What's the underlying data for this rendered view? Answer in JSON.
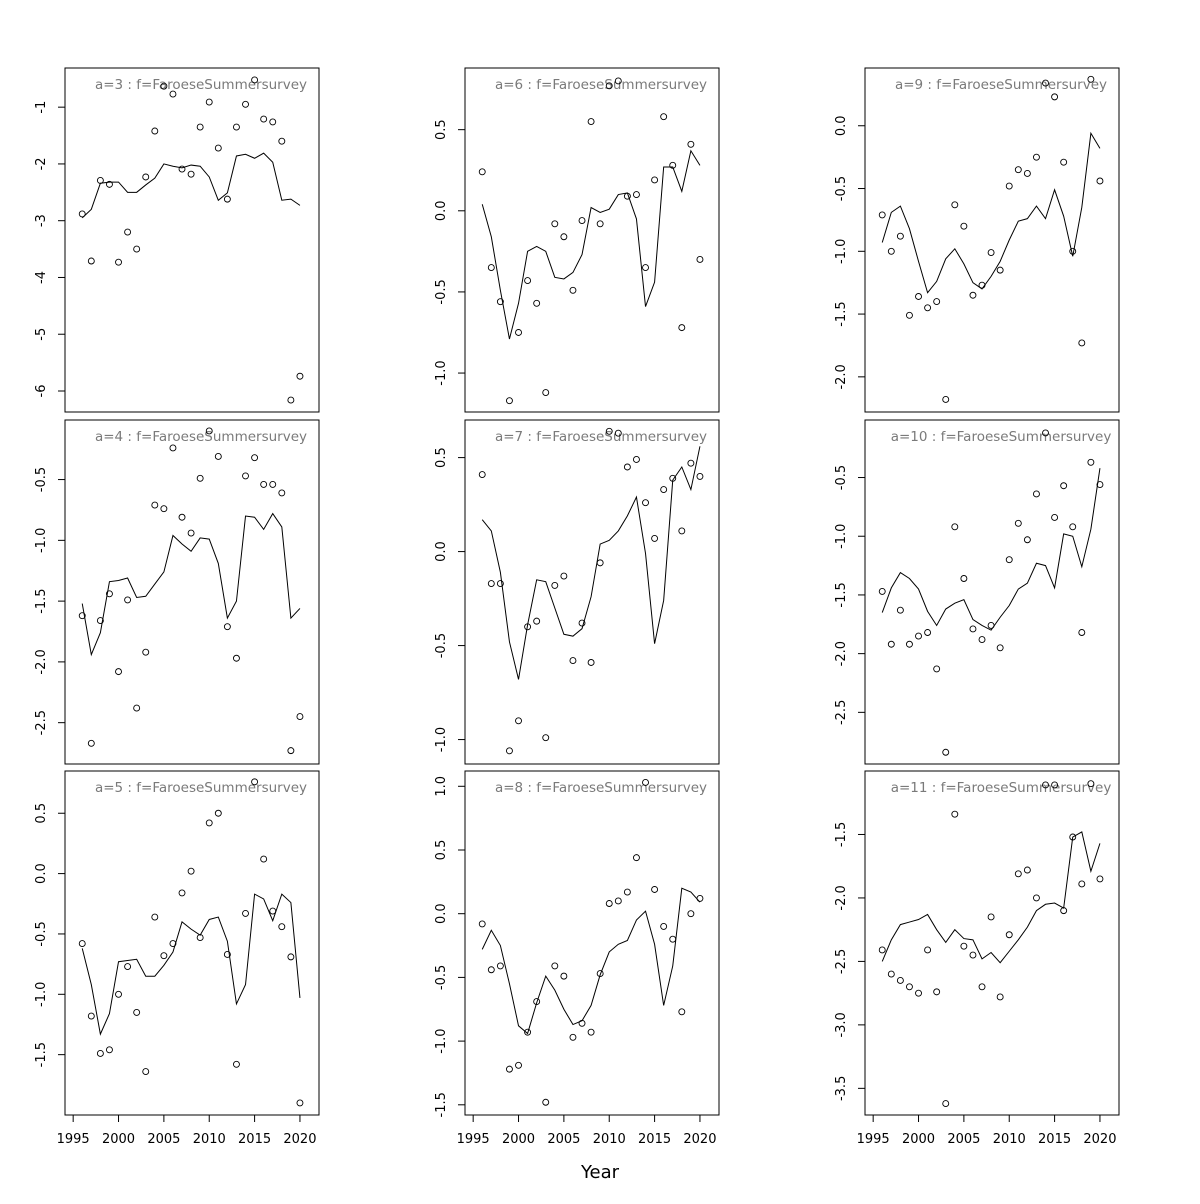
{
  "xlabel": "Year",
  "chart_data": [
    {
      "type": "line",
      "title": "a=3 : f=FaroeseSummersurvey",
      "x": [
        1996,
        1997,
        1998,
        1999,
        2000,
        2001,
        2002,
        2003,
        2004,
        2005,
        2006,
        2007,
        2008,
        2009,
        2010,
        2011,
        2012,
        2013,
        2014,
        2015,
        2016,
        2017,
        2018,
        2019,
        2020
      ],
      "xlim": [
        1994.1,
        2022.1
      ],
      "ylim": [
        -6.37,
        -0.31
      ],
      "yticks": [
        -6,
        -5,
        -4,
        -3,
        -2,
        -1
      ],
      "series": [
        {
          "style": "points",
          "color": "#000000",
          "values": [
            -2.88,
            -3.71,
            -2.29,
            -2.36,
            -3.73,
            -3.2,
            -3.5,
            -2.23,
            -1.42,
            -0.63,
            -0.77,
            -2.09,
            -2.18,
            -1.35,
            -0.91,
            -1.72,
            -2.62,
            -1.35,
            -0.95,
            -0.52,
            -1.21,
            -1.26,
            -1.6,
            -6.16,
            -5.74
          ]
        },
        {
          "style": "line",
          "color": "#000000",
          "values": [
            -2.95,
            -2.8,
            -2.34,
            -2.32,
            -2.32,
            -2.5,
            -2.5,
            -2.37,
            -2.25,
            -2.0,
            -2.04,
            -2.07,
            -2.02,
            -2.04,
            -2.23,
            -2.64,
            -2.51,
            -1.86,
            -1.83,
            -1.9,
            -1.81,
            -1.97,
            -2.64,
            -2.62,
            -2.73
          ]
        }
      ]
    },
    {
      "type": "line",
      "title": "a=6 : f=FaroeseSummersurvey",
      "x": [
        1996,
        1997,
        1998,
        1999,
        2000,
        2001,
        2002,
        2003,
        2004,
        2005,
        2006,
        2007,
        2008,
        2009,
        2010,
        2011,
        2012,
        2013,
        2014,
        2015,
        2016,
        2017,
        2018,
        2019,
        2020
      ],
      "xlim": [
        1994.1,
        2022.1
      ],
      "ylim": [
        -1.24,
        0.88
      ],
      "yticks": [
        {
          "value": -1,
          "label": "-1.0"
        },
        -0.5,
        {
          "value": 0,
          "label": "0.0"
        },
        0.5
      ],
      "series": [
        {
          "style": "points",
          "color": "#000000",
          "values": [
            0.24,
            -0.35,
            -0.56,
            -1.17,
            -0.75,
            -0.43,
            -0.57,
            -1.12,
            -0.08,
            -0.16,
            -0.49,
            -0.06,
            0.55,
            -0.08,
            0.77,
            0.8,
            0.09,
            0.1,
            -0.35,
            0.19,
            0.58,
            0.28,
            -0.72,
            0.41,
            -0.3
          ]
        },
        {
          "style": "line",
          "color": "#000000",
          "values": [
            0.04,
            -0.16,
            -0.49,
            -0.79,
            -0.57,
            -0.25,
            -0.22,
            -0.25,
            -0.41,
            -0.42,
            -0.38,
            -0.27,
            0.02,
            -0.01,
            0.01,
            0.1,
            0.11,
            -0.05,
            -0.59,
            -0.44,
            0.27,
            0.27,
            0.12,
            0.37,
            0.28
          ]
        }
      ]
    },
    {
      "type": "line",
      "title": "a=9 : f=FaroeseSummersurvey",
      "x": [
        1996,
        1997,
        1998,
        1999,
        2000,
        2001,
        2002,
        2003,
        2004,
        2005,
        2006,
        2007,
        2008,
        2009,
        2010,
        2011,
        2012,
        2013,
        2014,
        2015,
        2016,
        2017,
        2018,
        2019,
        2020
      ],
      "xlim": [
        1994.1,
        2022.1
      ],
      "ylim": [
        -2.28,
        0.46
      ],
      "yticks": [
        {
          "value": -2,
          "label": "-2.0"
        },
        -1.5,
        {
          "value": -1,
          "label": "-1.0"
        },
        -0.5,
        {
          "value": 0,
          "label": "0.0"
        }
      ],
      "series": [
        {
          "style": "points",
          "color": "#000000",
          "values": [
            -0.71,
            -1.0,
            -0.88,
            -1.51,
            -1.36,
            -1.45,
            -1.4,
            -2.18,
            -0.63,
            -0.8,
            -1.35,
            -1.27,
            -1.01,
            -1.15,
            -0.48,
            -0.35,
            -0.38,
            -0.25,
            0.34,
            0.23,
            -0.29,
            -1.0,
            -1.73,
            0.37,
            -0.44
          ]
        },
        {
          "style": "line",
          "color": "#000000",
          "values": [
            -0.93,
            -0.69,
            -0.64,
            -0.82,
            -1.08,
            -1.33,
            -1.24,
            -1.06,
            -0.98,
            -1.1,
            -1.25,
            -1.3,
            -1.2,
            -1.08,
            -0.91,
            -0.76,
            -0.74,
            -0.64,
            -0.74,
            -0.51,
            -0.72,
            -1.04,
            -0.65,
            -0.06,
            -0.18
          ]
        }
      ]
    },
    {
      "type": "line",
      "title": "a=4 : f=FaroeseSummersurvey",
      "x": [
        1996,
        1997,
        1998,
        1999,
        2000,
        2001,
        2002,
        2003,
        2004,
        2005,
        2006,
        2007,
        2008,
        2009,
        2010,
        2011,
        2012,
        2013,
        2014,
        2015,
        2016,
        2017,
        2018,
        2019,
        2020
      ],
      "xlim": [
        1994.1,
        2022.1
      ],
      "ylim": [
        -2.84,
        -0.01
      ],
      "yticks": [
        -2.5,
        {
          "value": -2,
          "label": "-2.0"
        },
        -1.5,
        {
          "value": -1,
          "label": "-1.0"
        },
        -0.5
      ],
      "series": [
        {
          "style": "points",
          "color": "#000000",
          "values": [
            -1.62,
            -2.67,
            -1.66,
            -1.44,
            -2.08,
            -1.49,
            -2.38,
            -1.92,
            -0.71,
            -0.74,
            -0.24,
            -0.81,
            -0.94,
            -0.49,
            -0.1,
            -0.31,
            -1.71,
            -1.97,
            -0.47,
            -0.32,
            -0.54,
            -0.54,
            -0.61,
            -2.73,
            -2.45
          ]
        },
        {
          "style": "line",
          "color": "#000000",
          "values": [
            -1.52,
            -1.94,
            -1.76,
            -1.34,
            -1.33,
            -1.31,
            -1.47,
            -1.46,
            -1.36,
            -1.26,
            -0.96,
            -1.03,
            -1.09,
            -0.98,
            -0.99,
            -1.19,
            -1.64,
            -1.5,
            -0.8,
            -0.81,
            -0.91,
            -0.78,
            -0.89,
            -1.64,
            -1.56
          ]
        }
      ]
    },
    {
      "type": "line",
      "title": "a=7 : f=FaroeseSummersurvey",
      "x": [
        1996,
        1997,
        1998,
        1999,
        2000,
        2001,
        2002,
        2003,
        2004,
        2005,
        2006,
        2007,
        2008,
        2009,
        2010,
        2011,
        2012,
        2013,
        2014,
        2015,
        2016,
        2017,
        2018,
        2019,
        2020
      ],
      "xlim": [
        1994.1,
        2022.1
      ],
      "ylim": [
        -1.13,
        0.7
      ],
      "yticks": [
        {
          "value": -1,
          "label": "-1.0"
        },
        -0.5,
        {
          "value": 0,
          "label": "0.0"
        },
        0.5
      ],
      "series": [
        {
          "style": "points",
          "color": "#000000",
          "values": [
            0.41,
            -0.17,
            -0.17,
            -1.06,
            -0.9,
            -0.4,
            -0.37,
            -0.99,
            -0.18,
            -0.13,
            -0.58,
            -0.38,
            -0.59,
            -0.06,
            0.64,
            0.63,
            0.45,
            0.49,
            0.26,
            0.07,
            0.33,
            0.39,
            0.11,
            0.47,
            0.4
          ]
        },
        {
          "style": "line",
          "color": "#000000",
          "values": [
            0.17,
            0.11,
            -0.11,
            -0.48,
            -0.68,
            -0.39,
            -0.15,
            -0.16,
            -0.3,
            -0.44,
            -0.45,
            -0.41,
            -0.24,
            0.04,
            0.06,
            0.11,
            0.19,
            0.29,
            -0.01,
            -0.49,
            -0.26,
            0.38,
            0.45,
            0.33,
            0.56
          ]
        }
      ]
    },
    {
      "type": "line",
      "title": "a=10 : f=FaroeseSummersurvey",
      "x": [
        1996,
        1997,
        1998,
        1999,
        2000,
        2001,
        2002,
        2003,
        2004,
        2005,
        2006,
        2007,
        2008,
        2009,
        2010,
        2011,
        2012,
        2013,
        2014,
        2015,
        2016,
        2017,
        2018,
        2019,
        2020
      ],
      "xlim": [
        1994.1,
        2022.1
      ],
      "ylim": [
        -2.94,
        -0.01
      ],
      "yticks": [
        -2.5,
        {
          "value": -2,
          "label": "-2.0"
        },
        -1.5,
        {
          "value": -1,
          "label": "-1.0"
        },
        -0.5
      ],
      "series": [
        {
          "style": "points",
          "color": "#000000",
          "values": [
            -1.47,
            -1.92,
            -1.63,
            -1.92,
            -1.85,
            -1.82,
            -2.13,
            -2.84,
            -0.92,
            -1.36,
            -1.79,
            -1.88,
            -1.76,
            -1.95,
            -1.2,
            -0.89,
            -1.03,
            -0.64,
            -0.12,
            -0.84,
            -0.57,
            -0.92,
            -1.82,
            -0.37,
            -0.56
          ]
        },
        {
          "style": "line",
          "color": "#000000",
          "values": [
            -1.65,
            -1.44,
            -1.31,
            -1.36,
            -1.45,
            -1.64,
            -1.76,
            -1.62,
            -1.57,
            -1.54,
            -1.71,
            -1.76,
            -1.8,
            -1.69,
            -1.59,
            -1.45,
            -1.4,
            -1.23,
            -1.25,
            -1.44,
            -0.98,
            -1.0,
            -1.26,
            -0.94,
            -0.42
          ]
        }
      ]
    },
    {
      "type": "line",
      "title": "a=5 : f=FaroeseSummersurvey",
      "x": [
        1996,
        1997,
        1998,
        1999,
        2000,
        2001,
        2002,
        2003,
        2004,
        2005,
        2006,
        2007,
        2008,
        2009,
        2010,
        2011,
        2012,
        2013,
        2014,
        2015,
        2016,
        2017,
        2018,
        2019,
        2020
      ],
      "xlim": [
        1994.1,
        2022.1
      ],
      "ylim": [
        -2.0,
        0.85
      ],
      "xticks": [
        1995,
        2000,
        2005,
        2010,
        2015,
        2020
      ],
      "yticks": [
        -1.5,
        {
          "value": -1,
          "label": "-1.0"
        },
        -0.5,
        {
          "value": 0,
          "label": "0.0"
        },
        0.5
      ],
      "series": [
        {
          "style": "points",
          "color": "#000000",
          "values": [
            -0.58,
            -1.18,
            -1.49,
            -1.46,
            -1.0,
            -0.77,
            -1.15,
            -1.64,
            -0.36,
            -0.68,
            -0.58,
            -0.16,
            0.02,
            -0.53,
            0.42,
            0.5,
            -0.67,
            -1.58,
            -0.33,
            0.76,
            0.12,
            -0.31,
            -0.44,
            -0.69,
            -1.9
          ]
        },
        {
          "style": "line",
          "color": "#000000",
          "values": [
            -0.62,
            -0.92,
            -1.33,
            -1.16,
            -0.73,
            -0.72,
            -0.71,
            -0.85,
            -0.85,
            -0.76,
            -0.65,
            -0.4,
            -0.46,
            -0.51,
            -0.38,
            -0.36,
            -0.56,
            -1.08,
            -0.92,
            -0.17,
            -0.21,
            -0.39,
            -0.17,
            -0.24,
            -1.03
          ]
        }
      ]
    },
    {
      "type": "line",
      "title": "a=8 : f=FaroeseSummersurvey",
      "x": [
        1996,
        1997,
        1998,
        1999,
        2000,
        2001,
        2002,
        2003,
        2004,
        2005,
        2006,
        2007,
        2008,
        2009,
        2010,
        2011,
        2012,
        2013,
        2014,
        2015,
        2016,
        2017,
        2018,
        2019,
        2020
      ],
      "xlim": [
        1994.1,
        2022.1
      ],
      "ylim": [
        -1.58,
        1.12
      ],
      "xticks": [
        1995,
        2000,
        2005,
        2010,
        2015,
        2020
      ],
      "yticks": [
        -1.5,
        {
          "value": -1,
          "label": "-1.0"
        },
        -0.5,
        {
          "value": 0,
          "label": "0.0"
        },
        0.5,
        {
          "value": 1,
          "label": "1.0"
        }
      ],
      "series": [
        {
          "style": "points",
          "color": "#000000",
          "values": [
            -0.08,
            -0.44,
            -0.41,
            -1.22,
            -1.19,
            -0.93,
            -0.69,
            -1.48,
            -0.41,
            -0.49,
            -0.97,
            -0.86,
            -0.93,
            -0.47,
            0.08,
            0.1,
            0.17,
            0.44,
            1.03,
            0.19,
            -0.1,
            -0.2,
            -0.77,
            0.0,
            0.12
          ]
        },
        {
          "style": "line",
          "color": "#000000",
          "values": [
            -0.28,
            -0.13,
            -0.25,
            -0.55,
            -0.88,
            -0.94,
            -0.7,
            -0.49,
            -0.6,
            -0.75,
            -0.87,
            -0.84,
            -0.72,
            -0.48,
            -0.3,
            -0.24,
            -0.21,
            -0.05,
            0.02,
            -0.24,
            -0.72,
            -0.41,
            0.2,
            0.17,
            0.09
          ]
        }
      ]
    },
    {
      "type": "line",
      "title": "a=11 : f=FaroeseSummersurvey",
      "x": [
        1996,
        1997,
        1998,
        1999,
        2000,
        2001,
        2002,
        2003,
        2004,
        2005,
        2006,
        2007,
        2008,
        2009,
        2010,
        2011,
        2012,
        2013,
        2014,
        2015,
        2016,
        2017,
        2018,
        2019,
        2020
      ],
      "xlim": [
        1994.1,
        2022.1
      ],
      "ylim": [
        -3.71,
        -1.0
      ],
      "xticks": [
        1995,
        2000,
        2005,
        2010,
        2015,
        2020
      ],
      "yticks": [
        -3.5,
        {
          "value": -3,
          "label": "-3.0"
        },
        -2.5,
        {
          "value": -2,
          "label": "-2.0"
        },
        -1.5
      ],
      "series": [
        {
          "style": "points",
          "color": "#000000",
          "values": [
            -2.41,
            -2.6,
            -2.65,
            -2.7,
            -2.75,
            -2.41,
            -2.74,
            -3.62,
            -1.34,
            -2.38,
            -2.45,
            -2.7,
            -2.15,
            -2.78,
            -2.29,
            -1.81,
            -1.78,
            -2.0,
            -1.11,
            -1.11,
            -2.1,
            -1.52,
            -1.89,
            -1.1,
            -1.85
          ]
        },
        {
          "style": "line",
          "color": "#000000",
          "values": [
            -2.5,
            -2.33,
            -2.21,
            -2.19,
            -2.17,
            -2.13,
            -2.25,
            -2.35,
            -2.25,
            -2.32,
            -2.33,
            -2.48,
            -2.43,
            -2.51,
            -2.42,
            -2.33,
            -2.23,
            -2.1,
            -2.05,
            -2.04,
            -2.08,
            -1.52,
            -1.48,
            -1.79,
            -1.57
          ]
        }
      ]
    }
  ]
}
